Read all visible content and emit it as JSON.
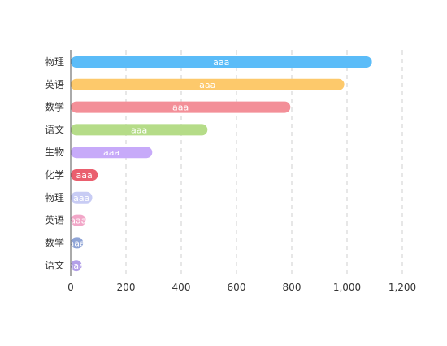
{
  "chart_data": {
    "type": "bar",
    "orientation": "horizontal",
    "categories": [
      "物理",
      "英语",
      "数学",
      "语文",
      "生物",
      "化学",
      "物理",
      "英语",
      "数学",
      "语文"
    ],
    "values": [
      1090,
      990,
      795,
      495,
      295,
      98,
      78,
      55,
      45,
      40
    ],
    "data_labels": [
      "aaa",
      "aaa",
      "aaa",
      "aaa",
      "aaa",
      "aaa",
      "aaa",
      "aaa",
      "aaa",
      "aaa"
    ],
    "colors": [
      "#5bbcf8",
      "#fdc96b",
      "#f38f98",
      "#b5dc88",
      "#c7aaf9",
      "#ea5f6e",
      "#c8ccf4",
      "#f2a7c8",
      "#8fa4d6",
      "#b3a0e8"
    ],
    "x_ticks": [
      0,
      200,
      400,
      600,
      800,
      1000,
      1200
    ],
    "x_tick_labels": [
      "0",
      "200",
      "400",
      "600",
      "800",
      "1,000",
      "1,200"
    ],
    "xlim": [
      0,
      1200
    ],
    "grid": "vertical dashed",
    "title": "",
    "xlabel": "",
    "ylabel": ""
  }
}
